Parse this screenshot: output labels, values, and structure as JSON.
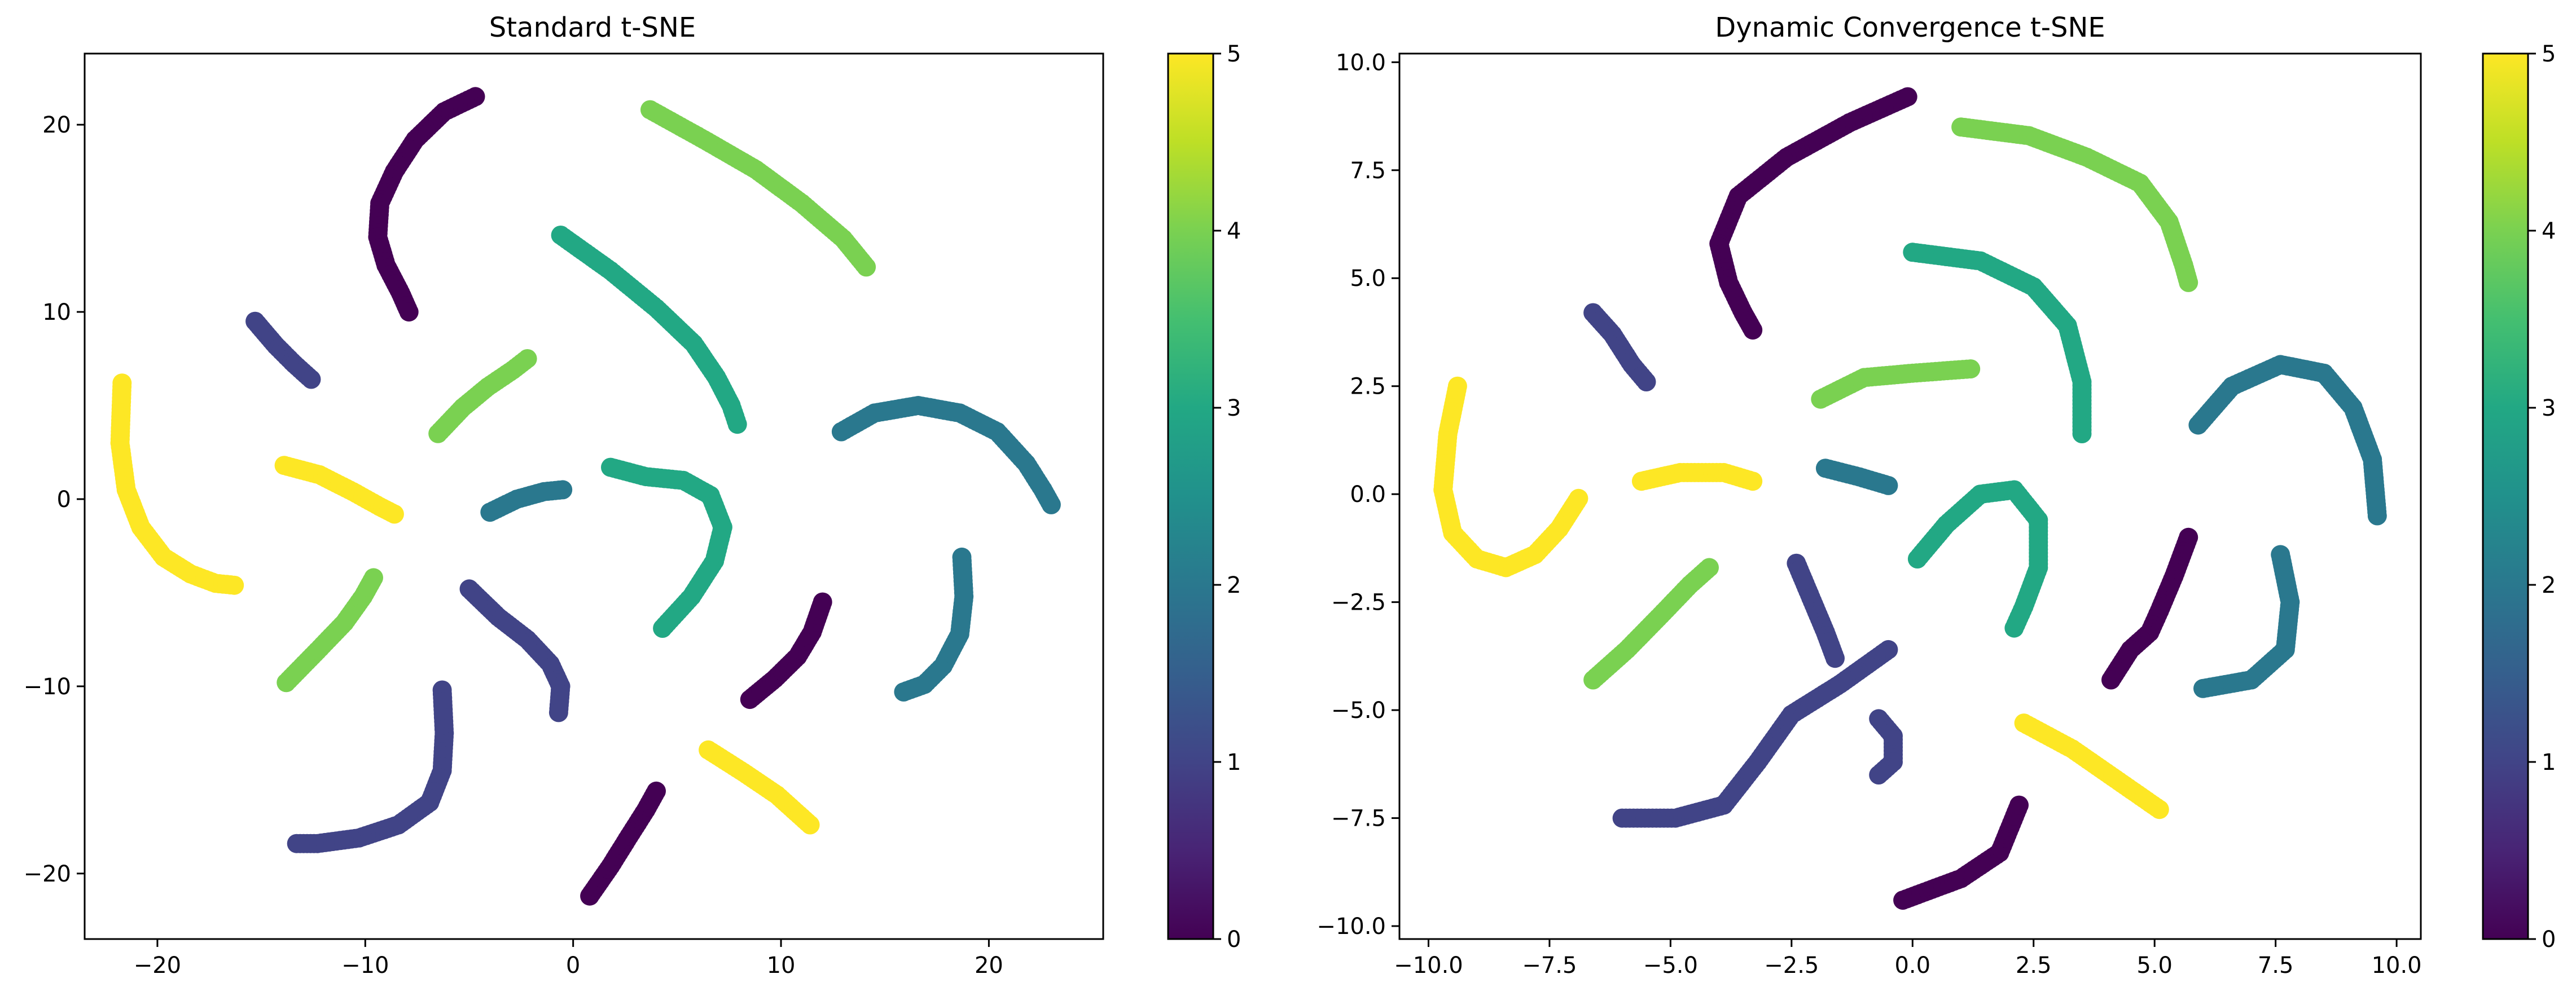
{
  "chart_data": [
    {
      "type": "scatter",
      "title": "Standard t-SNE",
      "xlabel": "",
      "ylabel": "",
      "xlim": [
        -23.5,
        25.5
      ],
      "ylim": [
        -23.5,
        23.8
      ],
      "xticks": [
        "−20",
        "−10",
        "0",
        "10",
        "20"
      ],
      "yticks": [
        "−20",
        "−10",
        "0",
        "10",
        "20"
      ],
      "grid": false,
      "colormap": "viridis",
      "colorbar": {
        "range": [
          0,
          5
        ],
        "ticks": [
          "0",
          "1",
          "2",
          "3",
          "4",
          "5"
        ]
      },
      "series": [
        {
          "value": 0,
          "points": [
            [
              -4.7,
              21.5
            ],
            [
              -6.2,
              20.7
            ],
            [
              -7.6,
              19.2
            ],
            [
              -8.6,
              17.5
            ],
            [
              -9.3,
              15.8
            ],
            [
              -9.4,
              14.0
            ],
            [
              -9.0,
              12.5
            ],
            [
              -8.3,
              11.0
            ],
            [
              -7.9,
              10.0
            ]
          ]
        },
        {
          "value": 4,
          "points": [
            [
              3.7,
              20.8
            ],
            [
              6.3,
              19.2
            ],
            [
              8.8,
              17.6
            ],
            [
              11.0,
              15.8
            ],
            [
              13.0,
              13.9
            ],
            [
              14.1,
              12.4
            ]
          ]
        },
        {
          "value": 3,
          "points": [
            [
              -0.6,
              14.1
            ],
            [
              1.8,
              12.2
            ],
            [
              4.0,
              10.2
            ],
            [
              5.8,
              8.3
            ],
            [
              6.9,
              6.5
            ],
            [
              7.6,
              5.0
            ],
            [
              7.9,
              4.0
            ]
          ]
        },
        {
          "value": 1,
          "points": [
            [
              -15.3,
              9.5
            ],
            [
              -14.3,
              8.2
            ],
            [
              -13.4,
              7.2
            ],
            [
              -12.6,
              6.4
            ]
          ]
        },
        {
          "value": 4,
          "points": [
            [
              -6.5,
              3.5
            ],
            [
              -5.3,
              4.9
            ],
            [
              -4.1,
              6.0
            ],
            [
              -2.9,
              6.9
            ],
            [
              -2.2,
              7.5
            ]
          ]
        },
        {
          "value": 5,
          "points": [
            [
              -21.7,
              6.2
            ],
            [
              -21.8,
              3.0
            ],
            [
              -21.5,
              0.5
            ],
            [
              -20.8,
              -1.5
            ],
            [
              -19.7,
              -3.1
            ],
            [
              -18.4,
              -4.0
            ],
            [
              -17.2,
              -4.5
            ],
            [
              -16.3,
              -4.6
            ]
          ]
        },
        {
          "value": 2,
          "points": [
            [
              12.9,
              3.6
            ],
            [
              14.5,
              4.6
            ],
            [
              16.6,
              5.0
            ],
            [
              18.6,
              4.6
            ],
            [
              20.4,
              3.6
            ],
            [
              21.8,
              1.9
            ],
            [
              22.6,
              0.5
            ],
            [
              23.0,
              -0.3
            ]
          ]
        },
        {
          "value": 5,
          "points": [
            [
              -13.9,
              1.8
            ],
            [
              -12.2,
              1.3
            ],
            [
              -10.6,
              0.4
            ],
            [
              -9.3,
              -0.4
            ],
            [
              -8.6,
              -0.8
            ]
          ]
        },
        {
          "value": 2,
          "points": [
            [
              -4.0,
              -0.7
            ],
            [
              -2.7,
              0.0
            ],
            [
              -1.4,
              0.4
            ],
            [
              -0.5,
              0.5
            ]
          ]
        },
        {
          "value": 3,
          "points": [
            [
              1.8,
              1.7
            ],
            [
              3.5,
              1.2
            ],
            [
              5.3,
              1.0
            ],
            [
              6.6,
              0.2
            ],
            [
              7.2,
              -1.5
            ],
            [
              6.8,
              -3.3
            ],
            [
              5.7,
              -5.2
            ],
            [
              4.3,
              -6.9
            ]
          ]
        },
        {
          "value": 4,
          "points": [
            [
              -13.8,
              -9.8
            ],
            [
              -12.3,
              -8.1
            ],
            [
              -11.0,
              -6.6
            ],
            [
              -10.1,
              -5.2
            ],
            [
              -9.6,
              -4.2
            ]
          ]
        },
        {
          "value": 1,
          "points": [
            [
              -5.0,
              -4.8
            ],
            [
              -3.6,
              -6.3
            ],
            [
              -2.2,
              -7.5
            ],
            [
              -1.1,
              -8.8
            ],
            [
              -0.6,
              -10.0
            ],
            [
              -0.7,
              -11.4
            ]
          ]
        },
        {
          "value": 0,
          "points": [
            [
              8.5,
              -10.7
            ],
            [
              9.7,
              -9.6
            ],
            [
              10.8,
              -8.4
            ],
            [
              11.5,
              -7.1
            ],
            [
              12.0,
              -5.5
            ]
          ]
        },
        {
          "value": 2,
          "points": [
            [
              18.7,
              -3.1
            ],
            [
              18.8,
              -5.2
            ],
            [
              18.6,
              -7.2
            ],
            [
              17.8,
              -8.9
            ],
            [
              16.9,
              -9.9
            ],
            [
              15.9,
              -10.3
            ]
          ]
        },
        {
          "value": 1,
          "points": [
            [
              -6.3,
              -10.2
            ],
            [
              -6.2,
              -12.5
            ],
            [
              -6.3,
              -14.5
            ],
            [
              -6.9,
              -16.2
            ],
            [
              -8.4,
              -17.4
            ],
            [
              -10.3,
              -18.1
            ],
            [
              -12.3,
              -18.4
            ],
            [
              -13.3,
              -18.4
            ]
          ]
        },
        {
          "value": 5,
          "points": [
            [
              6.5,
              -13.4
            ],
            [
              8.2,
              -14.6
            ],
            [
              9.8,
              -15.8
            ],
            [
              11.4,
              -17.4
            ]
          ]
        },
        {
          "value": 0,
          "points": [
            [
              0.8,
              -21.2
            ],
            [
              1.8,
              -19.6
            ],
            [
              2.7,
              -18.0
            ],
            [
              3.5,
              -16.6
            ],
            [
              4.0,
              -15.6
            ]
          ]
        }
      ]
    },
    {
      "type": "scatter",
      "title": "Dynamic Convergence t-SNE",
      "xlabel": "",
      "ylabel": "",
      "xlim": [
        -10.6,
        10.5
      ],
      "ylim": [
        -10.3,
        10.2
      ],
      "xticks": [
        "−10.0",
        "−7.5",
        "−5.0",
        "−2.5",
        "0.0",
        "2.5",
        "5.0",
        "7.5",
        "10.0"
      ],
      "yticks": [
        "−10.0",
        "−7.5",
        "−5.0",
        "−2.5",
        "0.0",
        "2.5",
        "5.0",
        "7.5",
        "10.0"
      ],
      "grid": false,
      "colormap": "viridis",
      "colorbar": {
        "range": [
          0,
          5
        ],
        "ticks": [
          "0",
          "1",
          "2",
          "3",
          "4",
          "5"
        ]
      },
      "series": [
        {
          "value": 0,
          "points": [
            [
              -0.1,
              9.2
            ],
            [
              -1.3,
              8.6
            ],
            [
              -2.6,
              7.8
            ],
            [
              -3.6,
              6.9
            ],
            [
              -4.0,
              5.8
            ],
            [
              -3.8,
              4.9
            ],
            [
              -3.5,
              4.2
            ],
            [
              -3.3,
              3.8
            ]
          ]
        },
        {
          "value": 4,
          "points": [
            [
              1.0,
              8.5
            ],
            [
              2.4,
              8.3
            ],
            [
              3.6,
              7.8
            ],
            [
              4.7,
              7.2
            ],
            [
              5.3,
              6.3
            ],
            [
              5.6,
              5.3
            ],
            [
              5.7,
              4.9
            ]
          ]
        },
        {
          "value": 3,
          "points": [
            [
              0.0,
              5.6
            ],
            [
              1.4,
              5.4
            ],
            [
              2.5,
              4.8
            ],
            [
              3.2,
              3.9
            ],
            [
              3.5,
              2.6
            ],
            [
              3.5,
              1.4
            ]
          ]
        },
        {
          "value": 1,
          "points": [
            [
              -6.6,
              4.2
            ],
            [
              -6.2,
              3.7
            ],
            [
              -5.8,
              3.0
            ],
            [
              -5.5,
              2.6
            ]
          ]
        },
        {
          "value": 4,
          "points": [
            [
              -1.9,
              2.2
            ],
            [
              -1.0,
              2.7
            ],
            [
              0.0,
              2.8
            ],
            [
              1.2,
              2.9
            ]
          ]
        },
        {
          "value": 5,
          "points": [
            [
              -9.4,
              2.5
            ],
            [
              -9.6,
              1.4
            ],
            [
              -9.7,
              0.1
            ],
            [
              -9.5,
              -0.9
            ],
            [
              -9.0,
              -1.5
            ],
            [
              -8.4,
              -1.7
            ],
            [
              -7.8,
              -1.4
            ],
            [
              -7.3,
              -0.8
            ],
            [
              -6.9,
              -0.1
            ]
          ]
        },
        {
          "value": 2,
          "points": [
            [
              5.9,
              1.6
            ],
            [
              6.6,
              2.5
            ],
            [
              7.6,
              3.0
            ],
            [
              8.5,
              2.8
            ],
            [
              9.1,
              2.0
            ],
            [
              9.5,
              0.8
            ],
            [
              9.6,
              -0.5
            ]
          ]
        },
        {
          "value": 5,
          "points": [
            [
              -5.6,
              0.3
            ],
            [
              -4.8,
              0.5
            ],
            [
              -3.9,
              0.5
            ],
            [
              -3.3,
              0.3
            ]
          ]
        },
        {
          "value": 2,
          "points": [
            [
              -1.8,
              0.6
            ],
            [
              -1.1,
              0.4
            ],
            [
              -0.5,
              0.2
            ]
          ]
        },
        {
          "value": 3,
          "points": [
            [
              0.1,
              -1.5
            ],
            [
              0.7,
              -0.7
            ],
            [
              1.4,
              0.0
            ],
            [
              2.1,
              0.1
            ],
            [
              2.6,
              -0.6
            ],
            [
              2.6,
              -1.7
            ],
            [
              2.3,
              -2.6
            ],
            [
              2.1,
              -3.1
            ]
          ]
        },
        {
          "value": 0,
          "points": [
            [
              5.7,
              -1.0
            ],
            [
              5.4,
              -1.9
            ],
            [
              5.1,
              -2.7
            ],
            [
              4.9,
              -3.2
            ],
            [
              4.5,
              -3.6
            ],
            [
              4.1,
              -4.3
            ]
          ]
        },
        {
          "value": 4,
          "points": [
            [
              -6.6,
              -4.3
            ],
            [
              -5.9,
              -3.6
            ],
            [
              -5.2,
              -2.8
            ],
            [
              -4.6,
              -2.1
            ],
            [
              -4.2,
              -1.7
            ]
          ]
        },
        {
          "value": 1,
          "points": [
            [
              -2.4,
              -1.6
            ],
            [
              -2.1,
              -2.4
            ],
            [
              -1.8,
              -3.2
            ],
            [
              -1.6,
              -3.8
            ]
          ]
        },
        {
          "value": 2,
          "points": [
            [
              7.6,
              -1.4
            ],
            [
              7.8,
              -2.5
            ],
            [
              7.7,
              -3.6
            ],
            [
              7.0,
              -4.3
            ],
            [
              6.0,
              -4.5
            ]
          ]
        },
        {
          "value": 1,
          "points": [
            [
              -0.5,
              -3.6
            ],
            [
              -1.5,
              -4.4
            ],
            [
              -2.5,
              -5.1
            ],
            [
              -3.2,
              -6.2
            ],
            [
              -3.9,
              -7.2
            ],
            [
              -4.9,
              -7.5
            ],
            [
              -6.0,
              -7.5
            ]
          ]
        },
        {
          "value": 1,
          "points": [
            [
              -0.7,
              -5.2
            ],
            [
              -0.4,
              -5.6
            ],
            [
              -0.4,
              -6.2
            ],
            [
              -0.7,
              -6.5
            ]
          ]
        },
        {
          "value": 5,
          "points": [
            [
              2.3,
              -5.3
            ],
            [
              3.3,
              -5.9
            ],
            [
              4.2,
              -6.6
            ],
            [
              5.1,
              -7.3
            ]
          ]
        },
        {
          "value": 0,
          "points": [
            [
              -0.2,
              -9.4
            ],
            [
              1.0,
              -8.9
            ],
            [
              1.8,
              -8.3
            ],
            [
              2.2,
              -7.2
            ]
          ]
        }
      ]
    }
  ]
}
